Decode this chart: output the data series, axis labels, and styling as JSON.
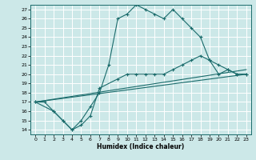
{
  "title": "",
  "xlabel": "Humidex (Indice chaleur)",
  "bg_color": "#cce8e8",
  "line_color": "#1a6b6b",
  "grid_color": "#ffffff",
  "ylim": [
    13.5,
    27.5
  ],
  "xlim": [
    -0.5,
    23.5
  ],
  "yticks": [
    14,
    15,
    16,
    17,
    18,
    19,
    20,
    21,
    22,
    23,
    24,
    25,
    26,
    27
  ],
  "xticks": [
    0,
    1,
    2,
    3,
    4,
    5,
    6,
    7,
    8,
    9,
    10,
    11,
    12,
    13,
    14,
    15,
    16,
    17,
    18,
    19,
    20,
    21,
    22,
    23
  ],
  "line1_x": [
    0,
    1,
    2,
    3,
    4,
    5,
    6,
    7,
    8,
    9,
    10,
    11,
    12,
    13,
    14,
    15,
    16,
    17,
    18,
    19,
    20,
    21,
    22,
    23
  ],
  "line1_y": [
    17,
    17,
    16,
    15,
    14,
    15,
    16.5,
    18,
    21,
    26,
    26.5,
    27.5,
    27,
    26.5,
    26,
    27,
    26,
    25,
    24,
    21.5,
    20,
    20.5,
    20,
    20
  ],
  "line2_x": [
    0,
    2,
    3,
    4,
    5,
    6,
    7,
    9,
    10,
    11,
    12,
    13,
    14,
    15,
    16,
    17,
    18,
    19,
    20,
    21,
    22,
    23
  ],
  "line2_y": [
    17,
    16,
    15,
    14,
    14.5,
    15.5,
    18.5,
    19.5,
    20,
    20,
    20,
    20,
    20,
    20.5,
    21,
    21.5,
    22,
    21.5,
    21,
    20.5,
    20,
    20
  ],
  "line3_x": [
    0,
    23
  ],
  "line3_y": [
    17,
    20
  ],
  "line4_x": [
    0,
    23
  ],
  "line4_y": [
    17,
    20.5
  ]
}
